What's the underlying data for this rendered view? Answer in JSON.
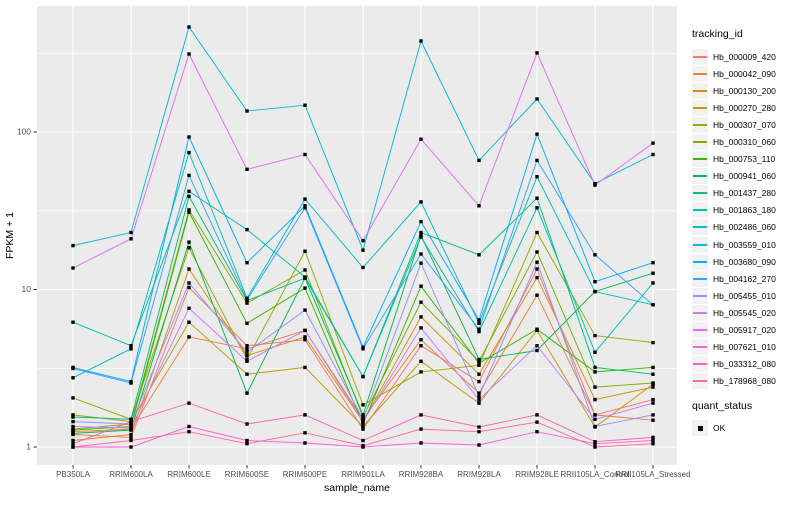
{
  "figure": {
    "xlabel": "sample_name",
    "ylabel": "FPKM + 1",
    "legend": {
      "tracking_title": "tracking_id",
      "quant_title": "quant_status",
      "quant_ok_label": "OK"
    }
  },
  "colors": {
    "panel_bg": "#EBEBEB",
    "grid_major": "#FFFFFF",
    "grid_minor": "#FFFFFF",
    "key_bg": "#F2F2F2",
    "point": "#000000",
    "tick_text": "#4D4D4D",
    "axis_title_text": "#000000",
    "tick_mark": "#333333"
  },
  "chart_data": {
    "type": "line",
    "title": "",
    "xlabel": "sample_name",
    "ylabel": "FPKM + 1",
    "yscale": "log10",
    "ylim": [
      0.93,
      640
    ],
    "yticks": [
      1,
      10,
      100
    ],
    "minor_ticks": [
      3.162,
      31.62,
      316.2
    ],
    "grid": true,
    "legend_position": "right",
    "point_shape": "filled-black-square",
    "x_categories": [
      "PB350LA",
      "RRIM600LA",
      "RRIM600LE",
      "RRIM600SE",
      "RRIM600PE",
      "RRIM901LA",
      "RRIM928BA",
      "RRIM928LA",
      "RRIM928LE",
      "RRII105LA_Control",
      "RRII105LA_Stressed"
    ],
    "series": [
      {
        "name": "Hb_000009_420",
        "color": "#F8766D",
        "values": [
          1.2,
          1.15,
          10.3,
          4.4,
          4.8,
          1.3,
          4.4,
          2.6,
          13.5,
          1.6,
          2.0
        ]
      },
      {
        "name": "Hb_000042_090",
        "color": "#EA8331",
        "values": [
          1.25,
          1.3,
          5.0,
          4.2,
          5.5,
          1.5,
          4.8,
          2.2,
          9.2,
          1.6,
          1.48
        ]
      },
      {
        "name": "Hb_000130_200",
        "color": "#D89000",
        "values": [
          1.1,
          1.2,
          13.5,
          3.8,
          5.0,
          1.45,
          6.7,
          2.9,
          11.9,
          2.0,
          2.4
        ]
      },
      {
        "name": "Hb_000270_280",
        "color": "#C09B00",
        "values": [
          1.6,
          1.45,
          6.2,
          2.9,
          3.2,
          1.35,
          3.5,
          1.9,
          5.5,
          1.34,
          2.5
        ]
      },
      {
        "name": "Hb_000307_070",
        "color": "#A3A500",
        "values": [
          2.05,
          1.5,
          18.4,
          3.6,
          17.5,
          1.85,
          3.0,
          3.3,
          23.0,
          5.1,
          4.6
        ]
      },
      {
        "name": "Hb_000310_060",
        "color": "#7CAE00",
        "values": [
          1.3,
          1.4,
          32.0,
          8.2,
          13.3,
          1.55,
          8.3,
          3.5,
          17.3,
          2.4,
          2.55
        ]
      },
      {
        "name": "Hb_000753_110",
        "color": "#39B600",
        "values": [
          1.28,
          1.35,
          31.0,
          6.1,
          10.2,
          1.4,
          10.5,
          3.4,
          5.6,
          3.0,
          3.2
        ]
      },
      {
        "name": "Hb_000941_060",
        "color": "#00BB4E",
        "values": [
          1.22,
          1.28,
          20.0,
          2.2,
          11.8,
          1.6,
          22.0,
          3.6,
          4.1,
          9.7,
          12.7
        ]
      },
      {
        "name": "Hb_001437_280",
        "color": "#00BF7D",
        "values": [
          1.55,
          1.5,
          39.0,
          8.5,
          11.8,
          2.8,
          23.0,
          16.6,
          38.0,
          3.2,
          2.9
        ]
      },
      {
        "name": "Hb_001863_180",
        "color": "#00C1A3",
        "values": [
          6.2,
          4.4,
          42.0,
          24.0,
          12.0,
          2.8,
          21.5,
          5.4,
          33.0,
          4.0,
          11.0
        ]
      },
      {
        "name": "Hb_002486_060",
        "color": "#00BFC4",
        "values": [
          2.75,
          4.2,
          74.0,
          8.8,
          37.5,
          13.8,
          36.0,
          6.1,
          52.0,
          9.7,
          8.0
        ]
      },
      {
        "name": "Hb_003559_010",
        "color": "#00BAE0",
        "values": [
          19.0,
          23.0,
          464.0,
          136.0,
          148.0,
          17.8,
          378.0,
          66.0,
          162.0,
          47.0,
          72.0
        ]
      },
      {
        "name": "Hb_003680_090",
        "color": "#00B0F6",
        "values": [
          3.2,
          2.6,
          93.0,
          14.8,
          34.0,
          4.3,
          27.0,
          6.4,
          97.0,
          11.2,
          14.8
        ]
      },
      {
        "name": "Hb_004162_270",
        "color": "#35A2FF",
        "values": [
          3.15,
          2.55,
          53.0,
          8.6,
          33.0,
          4.2,
          16.8,
          5.6,
          66.0,
          16.6,
          8.0
        ]
      },
      {
        "name": "Hb_005455_010",
        "color": "#9590FF",
        "values": [
          1.45,
          1.4,
          11.0,
          4.0,
          7.4,
          1.5,
          14.7,
          2.1,
          14.9,
          1.35,
          1.6
        ]
      },
      {
        "name": "Hb_005545_020",
        "color": "#C77CFF",
        "values": [
          1.35,
          1.32,
          7.6,
          3.5,
          5.5,
          1.45,
          5.7,
          2.0,
          4.4,
          1.5,
          1.9
        ]
      },
      {
        "name": "Hb_005917_020",
        "color": "#E76BF3",
        "values": [
          13.7,
          21.0,
          313.0,
          58.0,
          72.0,
          20.4,
          90.0,
          34.0,
          318.0,
          46.0,
          85.0
        ]
      },
      {
        "name": "Hb_007621_010",
        "color": "#FA62DB",
        "values": [
          1.0,
          1.0,
          1.35,
          1.1,
          1.06,
          1.0,
          1.06,
          1.03,
          1.25,
          1.05,
          1.1
        ]
      },
      {
        "name": "Hb_033312_080",
        "color": "#FF62BC",
        "values": [
          1.05,
          1.45,
          1.9,
          1.4,
          1.6,
          1.1,
          1.6,
          1.34,
          1.6,
          1.08,
          1.15
        ]
      },
      {
        "name": "Hb_178968_080",
        "color": "#FF6A98",
        "values": [
          1.0,
          1.1,
          1.25,
          1.05,
          1.23,
          1.02,
          1.3,
          1.25,
          1.44,
          1.0,
          1.05
        ]
      }
    ]
  }
}
